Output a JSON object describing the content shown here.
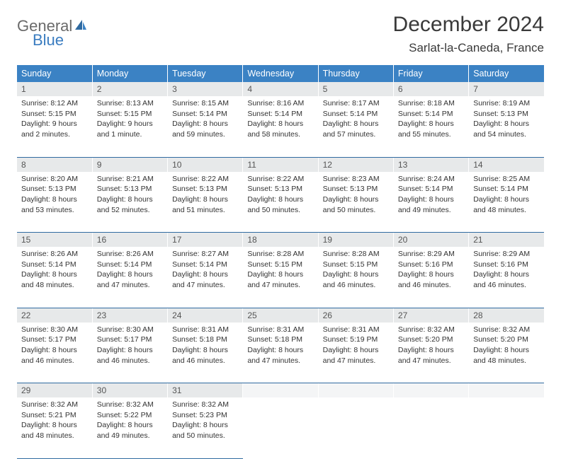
{
  "logo": {
    "part1": "General",
    "part2": "Blue"
  },
  "header": {
    "title": "December 2024",
    "location": "Sarlat-la-Caneda, France"
  },
  "styling": {
    "header_bg": "#3b82c4",
    "header_text": "#ffffff",
    "daynum_bg": "#e7e9ea",
    "daynum_text": "#555555",
    "body_text": "#333333",
    "border_color": "#2f6aa0",
    "empty_bg": "#f4f5f6",
    "body_font_size": 10.5,
    "header_font_size": 12.5,
    "title_font_size": 30,
    "location_font_size": 17
  },
  "weekdays": [
    "Sunday",
    "Monday",
    "Tuesday",
    "Wednesday",
    "Thursday",
    "Friday",
    "Saturday"
  ],
  "weeks": [
    [
      {
        "day": "1",
        "sunrise": "Sunrise: 8:12 AM",
        "sunset": "Sunset: 5:15 PM",
        "daylight": "Daylight: 9 hours and 2 minutes."
      },
      {
        "day": "2",
        "sunrise": "Sunrise: 8:13 AM",
        "sunset": "Sunset: 5:15 PM",
        "daylight": "Daylight: 9 hours and 1 minute."
      },
      {
        "day": "3",
        "sunrise": "Sunrise: 8:15 AM",
        "sunset": "Sunset: 5:14 PM",
        "daylight": "Daylight: 8 hours and 59 minutes."
      },
      {
        "day": "4",
        "sunrise": "Sunrise: 8:16 AM",
        "sunset": "Sunset: 5:14 PM",
        "daylight": "Daylight: 8 hours and 58 minutes."
      },
      {
        "day": "5",
        "sunrise": "Sunrise: 8:17 AM",
        "sunset": "Sunset: 5:14 PM",
        "daylight": "Daylight: 8 hours and 57 minutes."
      },
      {
        "day": "6",
        "sunrise": "Sunrise: 8:18 AM",
        "sunset": "Sunset: 5:14 PM",
        "daylight": "Daylight: 8 hours and 55 minutes."
      },
      {
        "day": "7",
        "sunrise": "Sunrise: 8:19 AM",
        "sunset": "Sunset: 5:13 PM",
        "daylight": "Daylight: 8 hours and 54 minutes."
      }
    ],
    [
      {
        "day": "8",
        "sunrise": "Sunrise: 8:20 AM",
        "sunset": "Sunset: 5:13 PM",
        "daylight": "Daylight: 8 hours and 53 minutes."
      },
      {
        "day": "9",
        "sunrise": "Sunrise: 8:21 AM",
        "sunset": "Sunset: 5:13 PM",
        "daylight": "Daylight: 8 hours and 52 minutes."
      },
      {
        "day": "10",
        "sunrise": "Sunrise: 8:22 AM",
        "sunset": "Sunset: 5:13 PM",
        "daylight": "Daylight: 8 hours and 51 minutes."
      },
      {
        "day": "11",
        "sunrise": "Sunrise: 8:22 AM",
        "sunset": "Sunset: 5:13 PM",
        "daylight": "Daylight: 8 hours and 50 minutes."
      },
      {
        "day": "12",
        "sunrise": "Sunrise: 8:23 AM",
        "sunset": "Sunset: 5:13 PM",
        "daylight": "Daylight: 8 hours and 50 minutes."
      },
      {
        "day": "13",
        "sunrise": "Sunrise: 8:24 AM",
        "sunset": "Sunset: 5:14 PM",
        "daylight": "Daylight: 8 hours and 49 minutes."
      },
      {
        "day": "14",
        "sunrise": "Sunrise: 8:25 AM",
        "sunset": "Sunset: 5:14 PM",
        "daylight": "Daylight: 8 hours and 48 minutes."
      }
    ],
    [
      {
        "day": "15",
        "sunrise": "Sunrise: 8:26 AM",
        "sunset": "Sunset: 5:14 PM",
        "daylight": "Daylight: 8 hours and 48 minutes."
      },
      {
        "day": "16",
        "sunrise": "Sunrise: 8:26 AM",
        "sunset": "Sunset: 5:14 PM",
        "daylight": "Daylight: 8 hours and 47 minutes."
      },
      {
        "day": "17",
        "sunrise": "Sunrise: 8:27 AM",
        "sunset": "Sunset: 5:14 PM",
        "daylight": "Daylight: 8 hours and 47 minutes."
      },
      {
        "day": "18",
        "sunrise": "Sunrise: 8:28 AM",
        "sunset": "Sunset: 5:15 PM",
        "daylight": "Daylight: 8 hours and 47 minutes."
      },
      {
        "day": "19",
        "sunrise": "Sunrise: 8:28 AM",
        "sunset": "Sunset: 5:15 PM",
        "daylight": "Daylight: 8 hours and 46 minutes."
      },
      {
        "day": "20",
        "sunrise": "Sunrise: 8:29 AM",
        "sunset": "Sunset: 5:16 PM",
        "daylight": "Daylight: 8 hours and 46 minutes."
      },
      {
        "day": "21",
        "sunrise": "Sunrise: 8:29 AM",
        "sunset": "Sunset: 5:16 PM",
        "daylight": "Daylight: 8 hours and 46 minutes."
      }
    ],
    [
      {
        "day": "22",
        "sunrise": "Sunrise: 8:30 AM",
        "sunset": "Sunset: 5:17 PM",
        "daylight": "Daylight: 8 hours and 46 minutes."
      },
      {
        "day": "23",
        "sunrise": "Sunrise: 8:30 AM",
        "sunset": "Sunset: 5:17 PM",
        "daylight": "Daylight: 8 hours and 46 minutes."
      },
      {
        "day": "24",
        "sunrise": "Sunrise: 8:31 AM",
        "sunset": "Sunset: 5:18 PM",
        "daylight": "Daylight: 8 hours and 46 minutes."
      },
      {
        "day": "25",
        "sunrise": "Sunrise: 8:31 AM",
        "sunset": "Sunset: 5:18 PM",
        "daylight": "Daylight: 8 hours and 47 minutes."
      },
      {
        "day": "26",
        "sunrise": "Sunrise: 8:31 AM",
        "sunset": "Sunset: 5:19 PM",
        "daylight": "Daylight: 8 hours and 47 minutes."
      },
      {
        "day": "27",
        "sunrise": "Sunrise: 8:32 AM",
        "sunset": "Sunset: 5:20 PM",
        "daylight": "Daylight: 8 hours and 47 minutes."
      },
      {
        "day": "28",
        "sunrise": "Sunrise: 8:32 AM",
        "sunset": "Sunset: 5:20 PM",
        "daylight": "Daylight: 8 hours and 48 minutes."
      }
    ],
    [
      {
        "day": "29",
        "sunrise": "Sunrise: 8:32 AM",
        "sunset": "Sunset: 5:21 PM",
        "daylight": "Daylight: 8 hours and 48 minutes."
      },
      {
        "day": "30",
        "sunrise": "Sunrise: 8:32 AM",
        "sunset": "Sunset: 5:22 PM",
        "daylight": "Daylight: 8 hours and 49 minutes."
      },
      {
        "day": "31",
        "sunrise": "Sunrise: 8:32 AM",
        "sunset": "Sunset: 5:23 PM",
        "daylight": "Daylight: 8 hours and 50 minutes."
      },
      null,
      null,
      null,
      null
    ]
  ]
}
